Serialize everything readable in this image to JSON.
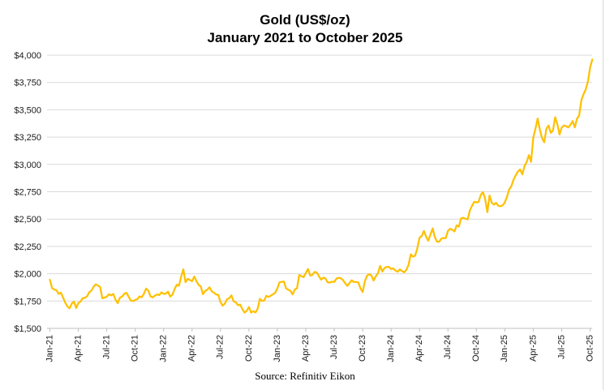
{
  "page": {
    "background": "#FFFFFF"
  },
  "header": {
    "title_line1": "Gold (US$/oz)",
    "title_line2": "January 2021 to October 2025"
  },
  "footer": {
    "source": "Source: Refinitiv Eikon"
  },
  "chart_data": {
    "type": "line",
    "title": "Gold (US$/oz)",
    "subtitle": "January 2021 to October 2025",
    "source": "Source: Refinitiv Eikon",
    "grid": "horizontal",
    "legend_position": "none",
    "ylabel": "",
    "xlabel": "",
    "ylim": [
      1500,
      4000
    ],
    "y_tick_interval": 250,
    "y_tick_labels_bottom_to_top": [
      "$1,500",
      "$1,750",
      "$2,000",
      "$2,250",
      "$2,500",
      "$2,750",
      "$3,000",
      "$3,250",
      "$3,500",
      "$3,750",
      "$4,000"
    ],
    "x_tick_labels": [
      "Jan-21",
      "Apr-21",
      "Jul-21",
      "Oct-21",
      "Jan-22",
      "Apr-22",
      "Jul-22",
      "Oct-22",
      "Jan-23",
      "Apr-23",
      "Jul-23",
      "Oct-23",
      "Jan-24",
      "Apr-24",
      "Jul-24",
      "Oct-24",
      "Jan-25",
      "Apr-25",
      "Jul-25",
      "Oct-25"
    ],
    "colors": {
      "line": "#FFC000",
      "gridline": "#D9D9D9",
      "axis": "#BFBFBF",
      "text": "#1A1A1A"
    },
    "series": [
      {
        "name": "Gold spot price (US$/oz)",
        "sampling": "weekly",
        "start": "Jan-21",
        "end": "Oct-25",
        "values": [
          1945,
          1868,
          1855,
          1850,
          1815,
          1827,
          1784,
          1735,
          1700,
          1684,
          1727,
          1745,
          1686,
          1732,
          1744,
          1777,
          1780,
          1792,
          1831,
          1845,
          1881,
          1903,
          1892,
          1879,
          1775,
          1782,
          1790,
          1812,
          1803,
          1815,
          1763,
          1730,
          1781,
          1790,
          1817,
          1826,
          1790,
          1754,
          1750,
          1761,
          1768,
          1793,
          1784,
          1817,
          1864,
          1846,
          1792,
          1784,
          1799,
          1810,
          1805,
          1830,
          1816,
          1818,
          1836,
          1791,
          1808,
          1859,
          1899,
          1890,
          1971,
          2040,
          1922,
          1954,
          1942,
          1932,
          1975,
          1932,
          1897,
          1884,
          1812,
          1842,
          1854,
          1876,
          1840,
          1827,
          1810,
          1807,
          1742,
          1708,
          1727,
          1766,
          1775,
          1802,
          1747,
          1738,
          1712,
          1717,
          1676,
          1644,
          1661,
          1695,
          1644,
          1658,
          1645,
          1682,
          1771,
          1751,
          1755,
          1798,
          1787,
          1799,
          1812,
          1824,
          1866,
          1921,
          1926,
          1928,
          1865,
          1854,
          1842,
          1811,
          1856,
          1868,
          1989,
          1978,
          1969,
          2007,
          2044,
          1983,
          1990,
          2016,
          2011,
          1977,
          1946,
          1964,
          1958,
          1921,
          1919,
          1927,
          1925,
          1955,
          1962,
          1959,
          1942,
          1913,
          1889,
          1915,
          1940,
          1924,
          1924,
          1920,
          1866,
          1832,
          1932,
          1981,
          1996,
          1984,
          1938,
          1977,
          2004,
          2072,
          2020,
          2053,
          2062,
          2063,
          2043,
          2049,
          2029,
          2018,
          2040,
          2024,
          2013,
          2035,
          2083,
          2178,
          2156,
          2166,
          2233,
          2330,
          2344,
          2392,
          2338,
          2302,
          2360,
          2415,
          2334,
          2293,
          2294,
          2321,
          2327,
          2326,
          2392,
          2411,
          2402,
          2387,
          2443,
          2431,
          2507,
          2512,
          2503,
          2497,
          2578,
          2622,
          2658,
          2653,
          2657,
          2721,
          2747,
          2684,
          2563,
          2716,
          2650,
          2633,
          2648,
          2622,
          2617,
          2625,
          2651,
          2703,
          2771,
          2801,
          2861,
          2900,
          2936,
          2953,
          2909,
          2984,
          3022,
          3085,
          3023,
          3244,
          3327,
          3420,
          3319,
          3241,
          3203,
          3326,
          3357,
          3289,
          3310,
          3432,
          3368,
          3274,
          3337,
          3356,
          3350,
          3339,
          3363,
          3397,
          3339,
          3418,
          3448,
          3587,
          3643,
          3687,
          3759,
          3887,
          3960
        ]
      }
    ]
  }
}
